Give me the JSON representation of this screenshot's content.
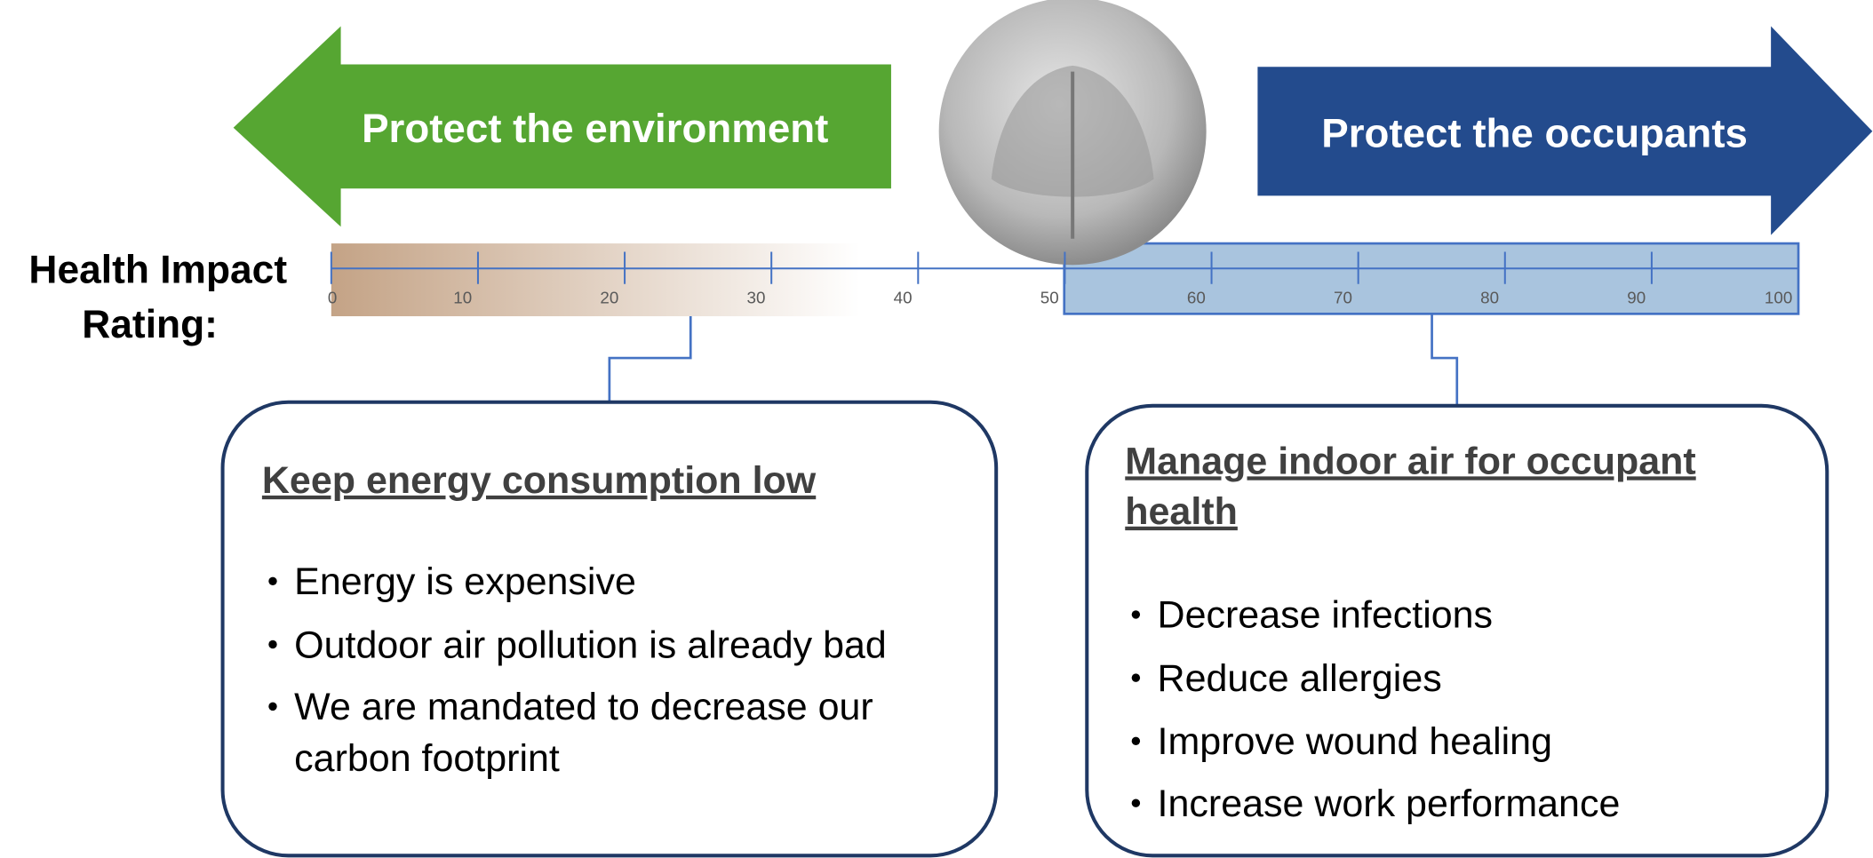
{
  "arrows": {
    "left": "Protect the environment",
    "right": "Protect the occupants"
  },
  "scale": {
    "label": [
      "Health Impact",
      "Rating:"
    ],
    "ticks": [
      0,
      10,
      20,
      30,
      40,
      50,
      60,
      70,
      80,
      90,
      100
    ]
  },
  "boxes": [
    {
      "title": [
        "Keep energy consumption low"
      ],
      "bullets": [
        [
          "Energy is expensive"
        ],
        [
          "Outdoor air pollution is already bad"
        ],
        [
          "We are mandated to decrease our",
          "carbon footprint"
        ]
      ]
    },
    {
      "title": [
        "Manage indoor air for occupant",
        "health"
      ],
      "bullets": [
        [
          "Decrease infections"
        ],
        [
          "Reduce allergies"
        ],
        [
          "Improve wound healing"
        ],
        [
          "Increase work performance"
        ]
      ]
    }
  ]
}
